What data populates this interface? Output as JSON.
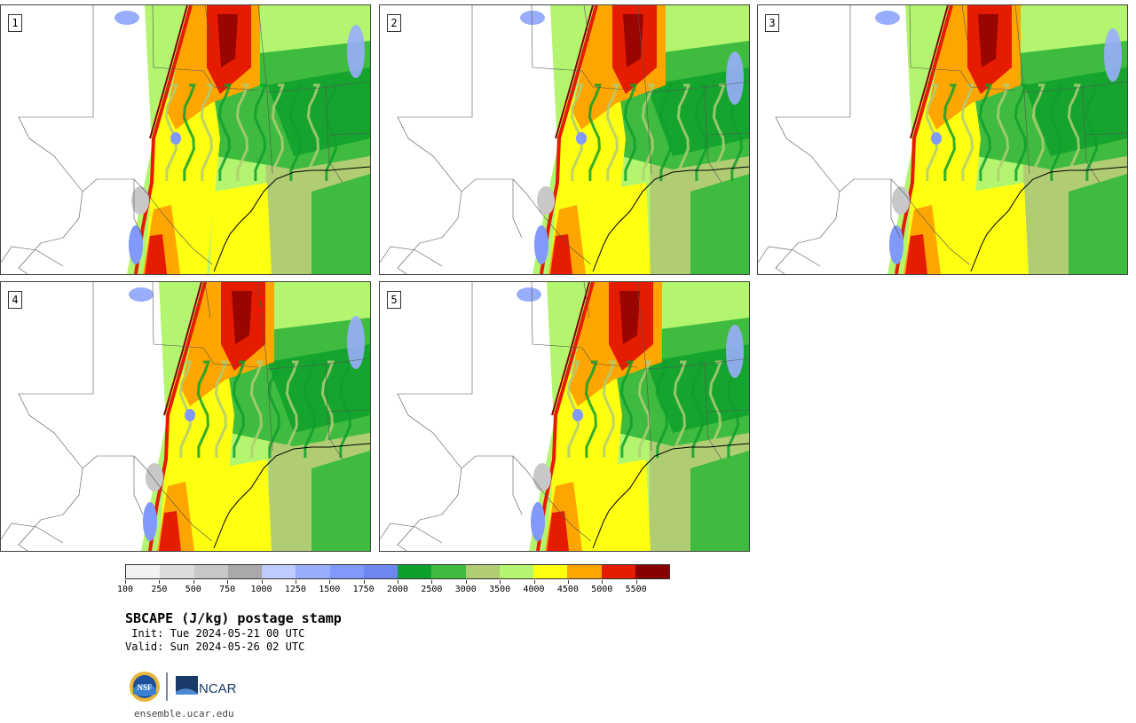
{
  "panels": [
    {
      "label": "1"
    },
    {
      "label": "2"
    },
    {
      "label": "3"
    },
    {
      "label": "4"
    },
    {
      "label": "5"
    }
  ],
  "colorbar": {
    "colors": [
      "#f2f2f2",
      "#dcdcdc",
      "#c8c8c8",
      "#a9a9a9",
      "#bfcaff",
      "#99adfd",
      "#8099fa",
      "#6e86f0",
      "#0ea02c",
      "#3fbb3f",
      "#b0cd74",
      "#b3f56e",
      "#ffff11",
      "#ffa500",
      "#e51c00",
      "#870000"
    ],
    "ticks": [
      "100",
      "250",
      "500",
      "750",
      "1000",
      "1250",
      "1500",
      "1750",
      "2000",
      "2500",
      "3000",
      "3500",
      "4000",
      "4500",
      "5000",
      "5500"
    ]
  },
  "title": "SBCAPE (J/kg) postage stamp",
  "init": " Init: Tue 2024-05-21 00 UTC",
  "valid": "Valid: Sun 2024-05-26 02 UTC",
  "logo_nsf": "NSF",
  "logo_ncar": "NCAR",
  "site": "ensemble.ucar.edu"
}
